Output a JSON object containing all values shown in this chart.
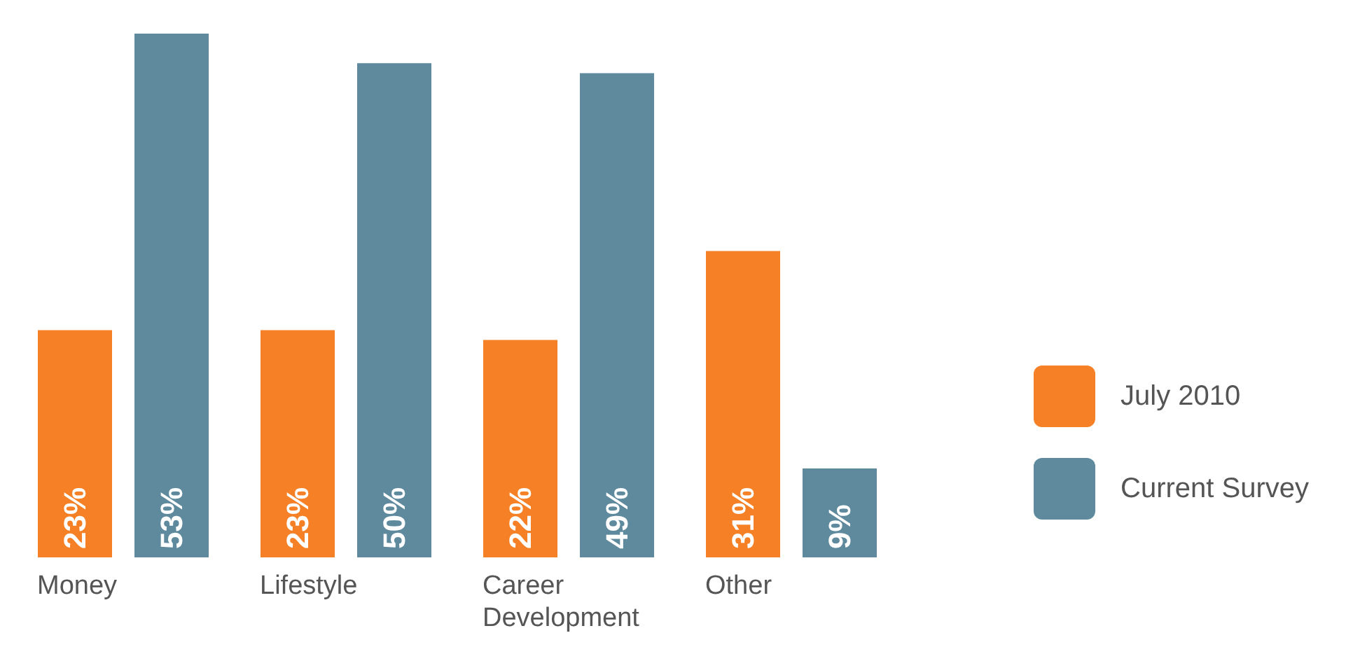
{
  "chart_data": {
    "type": "bar",
    "categories": [
      "Money",
      "Lifestyle",
      "Career Development",
      "Other"
    ],
    "series": [
      {
        "name": "July 2010",
        "color": "#f58025",
        "values": [
          23,
          23,
          22,
          31
        ],
        "value_labels": [
          "23%",
          "23%",
          "22%",
          "31%"
        ]
      },
      {
        "name": "Current Survey",
        "color": "#5f8a9e",
        "values": [
          53,
          50,
          49,
          9
        ],
        "value_labels": [
          "53%",
          "50%",
          "49%",
          "9%"
        ]
      }
    ],
    "legend": "right",
    "grid": false
  }
}
